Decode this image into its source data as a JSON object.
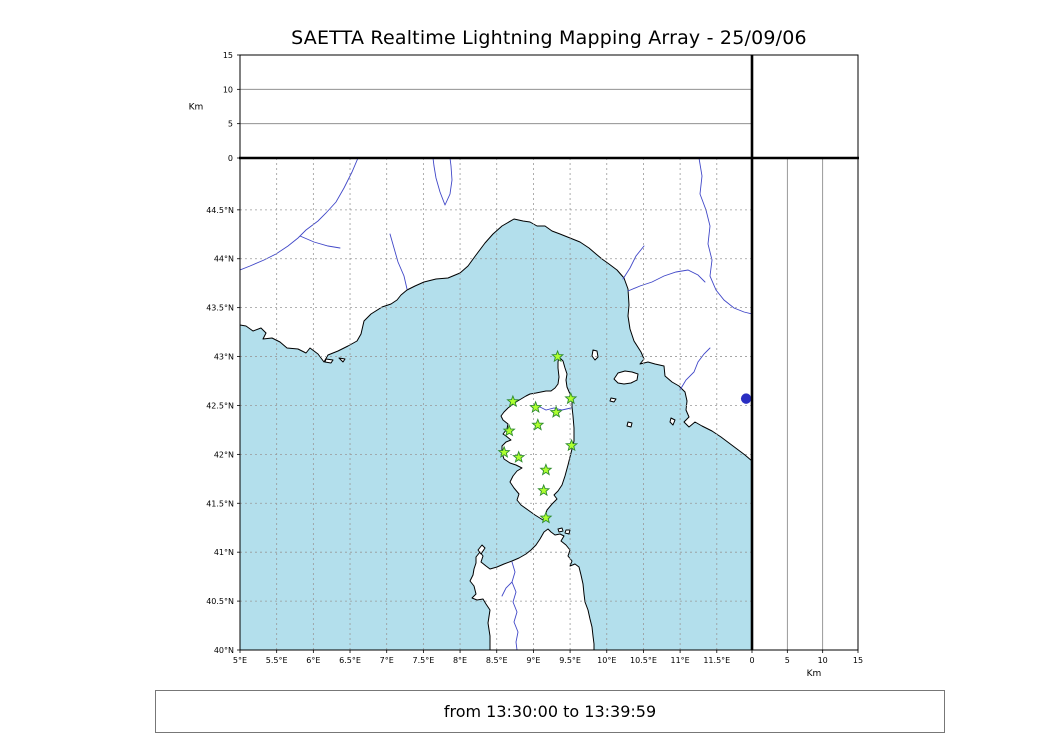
{
  "title": "SAETTA Realtime Lightning Mapping Array - 25/09/06",
  "footer": {
    "time_range": "from 13:30:00 to 13:39:59"
  },
  "chart_data": {
    "type": "scatter",
    "title": "SAETTA Realtime Lightning Mapping Array - 25/09/06",
    "subtitle": "from 13:30:00 to 13:39:59",
    "altitude_axis": {
      "label": "Km",
      "max": 15,
      "ticks": [
        {
          "v": 0,
          "label": "0"
        },
        {
          "v": 5,
          "label": "5"
        },
        {
          "v": 10,
          "label": "10"
        },
        {
          "v": 15,
          "label": "15"
        }
      ],
      "points": []
    },
    "map_panel": {
      "lon_range": [
        5.0,
        11.98
      ],
      "lat_range": [
        40.0,
        45.03
      ],
      "grid": "dashed",
      "lon_ticks": [
        {
          "v": 5,
          "label": "5°E"
        },
        {
          "v": 5.5,
          "label": "5.5°E"
        },
        {
          "v": 6,
          "label": "6°E"
        },
        {
          "v": 6.5,
          "label": "6.5°E"
        },
        {
          "v": 7,
          "label": "7°E"
        },
        {
          "v": 7.5,
          "label": "7.5°E"
        },
        {
          "v": 8,
          "label": "8°E"
        },
        {
          "v": 8.5,
          "label": "8.5°E"
        },
        {
          "v": 9,
          "label": "9°E"
        },
        {
          "v": 9.5,
          "label": "9.5°E"
        },
        {
          "v": 10,
          "label": "10°E"
        },
        {
          "v": 10.5,
          "label": "10.5°E"
        },
        {
          "v": 11,
          "label": "11°E"
        },
        {
          "v": 11.5,
          "label": "11.5°E"
        }
      ],
      "lat_ticks": [
        {
          "v": 40,
          "label": "40°N"
        },
        {
          "v": 40.5,
          "label": "40.5°N"
        },
        {
          "v": 41,
          "label": "41°N"
        },
        {
          "v": 41.5,
          "label": "41.5°N"
        },
        {
          "v": 42,
          "label": "42°N"
        },
        {
          "v": 42.5,
          "label": "42.5°N"
        },
        {
          "v": 43,
          "label": "43°N"
        },
        {
          "v": 43.5,
          "label": "43.5°N"
        },
        {
          "v": 44,
          "label": "44°N"
        },
        {
          "v": 44.5,
          "label": "44.5°N"
        }
      ],
      "stations": [
        {
          "lon": 9.33,
          "lat": 43.0
        },
        {
          "lon": 8.72,
          "lat": 42.54
        },
        {
          "lon": 9.03,
          "lat": 42.48
        },
        {
          "lon": 9.31,
          "lat": 42.43
        },
        {
          "lon": 9.51,
          "lat": 42.57
        },
        {
          "lon": 9.06,
          "lat": 42.3
        },
        {
          "lon": 8.67,
          "lat": 42.24
        },
        {
          "lon": 8.6,
          "lat": 42.02
        },
        {
          "lon": 8.8,
          "lat": 41.97
        },
        {
          "lon": 9.52,
          "lat": 42.09
        },
        {
          "lon": 9.17,
          "lat": 41.84
        },
        {
          "lon": 9.14,
          "lat": 41.63
        },
        {
          "lon": 9.17,
          "lat": 41.35
        }
      ],
      "lake": {
        "lon": 11.9,
        "lat": 42.57
      }
    }
  },
  "style": {
    "sea_color": "#b3dfec",
    "land_color": "#ffffff",
    "coast_color": "#000000",
    "river_color": "#4148c8",
    "lake_color": "#2a2ec2",
    "grid_color": "#999999",
    "station_fill": "#adff2f",
    "station_stroke": "#2e8b2e",
    "frame_color": "#000000"
  }
}
